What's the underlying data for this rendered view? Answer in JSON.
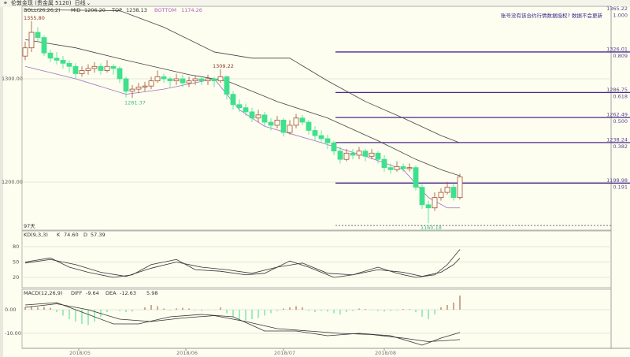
{
  "window": {
    "title": "伦敦金现 (贵金属 5120)",
    "period": "日线"
  },
  "notice": "账号没有该合约行情数据授权? 数据不会更新",
  "colors": {
    "up": "#a0522d",
    "down": "#3ee08c",
    "fib": "#4b2a8c",
    "boll_bottom": "#a070c0",
    "grid": "#e6e6d8",
    "axis": "#999999"
  },
  "chart_data": {
    "type": "candlestick",
    "boll": {
      "label": "BOLL(26,26,2)",
      "mid_label": "MID",
      "mid": "1206.20",
      "top_label": "TOP",
      "top": "1238.13",
      "bottom_label": "BOTTOM",
      "bottom": "1174.26"
    },
    "ylim": [
      1155,
      1370
    ],
    "yticks": [
      "1300.00",
      "1200.00"
    ],
    "ytick_values": [
      1300,
      1200
    ],
    "xticks": [
      {
        "label": "2018/05",
        "index": 8.5
      },
      {
        "label": "2018/06",
        "index": 25.5
      },
      {
        "label": "2018/07",
        "index": 41
      },
      {
        "label": "2018/08",
        "index": 57
      }
    ],
    "days_label": "97天",
    "candles": [
      [
        1322,
        1336,
        1318,
        1330
      ],
      [
        1330,
        1355.8,
        1326,
        1345
      ],
      [
        1345,
        1350,
        1336,
        1340
      ],
      [
        1340,
        1342,
        1322,
        1325
      ],
      [
        1325,
        1328,
        1316,
        1320
      ],
      [
        1320,
        1326,
        1314,
        1318
      ],
      [
        1318,
        1322,
        1310,
        1315
      ],
      [
        1315,
        1318,
        1306,
        1312
      ],
      [
        1312,
        1315,
        1300,
        1305
      ],
      [
        1305,
        1312,
        1302,
        1308
      ],
      [
        1308,
        1314,
        1304,
        1310
      ],
      [
        1310,
        1316,
        1306,
        1312
      ],
      [
        1312,
        1315,
        1304,
        1308
      ],
      [
        1308,
        1318,
        1306,
        1312
      ],
      [
        1312,
        1314,
        1304,
        1310
      ],
      [
        1310,
        1312,
        1296,
        1300
      ],
      [
        1300,
        1302,
        1282,
        1288
      ],
      [
        1288,
        1294,
        1281.37,
        1290
      ],
      [
        1290,
        1296,
        1286,
        1292
      ],
      [
        1292,
        1297,
        1288,
        1293
      ],
      [
        1293,
        1302,
        1290,
        1298
      ],
      [
        1298,
        1308,
        1296,
        1302
      ],
      [
        1302,
        1305,
        1296,
        1300
      ],
      [
        1300,
        1302,
        1292,
        1298
      ],
      [
        1298,
        1305,
        1294,
        1300
      ],
      [
        1300,
        1304,
        1292,
        1296
      ],
      [
        1296,
        1302,
        1292,
        1298
      ],
      [
        1298,
        1303,
        1294,
        1300
      ],
      [
        1300,
        1302,
        1294,
        1298
      ],
      [
        1298,
        1304,
        1294,
        1300
      ],
      [
        1300,
        1302,
        1292,
        1298
      ],
      [
        1298,
        1309.22,
        1296,
        1302
      ],
      [
        1302,
        1303,
        1280,
        1285
      ],
      [
        1285,
        1288,
        1270,
        1275
      ],
      [
        1275,
        1280,
        1268,
        1272
      ],
      [
        1272,
        1276,
        1264,
        1268
      ],
      [
        1268,
        1272,
        1258,
        1262
      ],
      [
        1262,
        1270,
        1258,
        1265
      ],
      [
        1265,
        1268,
        1254,
        1258
      ],
      [
        1258,
        1262,
        1250,
        1255
      ],
      [
        1255,
        1264,
        1252,
        1260
      ],
      [
        1260,
        1262,
        1244,
        1248
      ],
      [
        1248,
        1260,
        1246,
        1255
      ],
      [
        1255,
        1266,
        1252,
        1262
      ],
      [
        1262,
        1265,
        1255,
        1258
      ],
      [
        1258,
        1260,
        1246,
        1250
      ],
      [
        1250,
        1254,
        1240,
        1245
      ],
      [
        1245,
        1250,
        1238,
        1242
      ],
      [
        1242,
        1246,
        1232,
        1238
      ],
      [
        1238,
        1240,
        1226,
        1230
      ],
      [
        1230,
        1234,
        1218,
        1222
      ],
      [
        1222,
        1232,
        1220,
        1228
      ],
      [
        1228,
        1232,
        1222,
        1226
      ],
      [
        1226,
        1234,
        1222,
        1230
      ],
      [
        1230,
        1232,
        1220,
        1225
      ],
      [
        1225,
        1232,
        1222,
        1228
      ],
      [
        1228,
        1230,
        1218,
        1222
      ],
      [
        1222,
        1226,
        1210,
        1214
      ],
      [
        1214,
        1218,
        1208,
        1212
      ],
      [
        1212,
        1220,
        1210,
        1215
      ],
      [
        1215,
        1218,
        1210,
        1213
      ],
      [
        1213,
        1218,
        1210,
        1214
      ],
      [
        1214,
        1216,
        1192,
        1195
      ],
      [
        1195,
        1198,
        1174,
        1178
      ],
      [
        1178,
        1182,
        1160.18,
        1175
      ],
      [
        1175,
        1190,
        1172,
        1185
      ],
      [
        1185,
        1194,
        1182,
        1190
      ],
      [
        1190,
        1200,
        1188,
        1195
      ],
      [
        1195,
        1198,
        1182,
        1185
      ],
      [
        1185,
        1208,
        1183,
        1205
      ]
    ],
    "annotations": [
      {
        "text": "1355.80",
        "index": 1,
        "value": 1355.8,
        "pos": "above"
      },
      {
        "text": "1281.37",
        "index": 17,
        "value": 1281.37,
        "pos": "below"
      },
      {
        "text": "1309.22",
        "index": 31,
        "value": 1309.22,
        "pos": "above"
      },
      {
        "text": "1160.18",
        "index": 64,
        "value": 1160.18,
        "pos": "below"
      }
    ],
    "boll_series": {
      "top": [
        [
          0,
          1367
        ],
        [
          15,
          1366
        ],
        [
          22,
          1350
        ],
        [
          30,
          1326
        ],
        [
          36,
          1320
        ],
        [
          42,
          1320
        ],
        [
          48,
          1298
        ],
        [
          54,
          1278
        ],
        [
          60,
          1262
        ],
        [
          66,
          1245
        ],
        [
          69,
          1238
        ]
      ],
      "mid": [
        [
          0,
          1338
        ],
        [
          8,
          1330
        ],
        [
          16,
          1318
        ],
        [
          26,
          1304
        ],
        [
          32,
          1298
        ],
        [
          40,
          1278
        ],
        [
          48,
          1262
        ],
        [
          56,
          1240
        ],
        [
          62,
          1222
        ],
        [
          66,
          1212
        ],
        [
          69,
          1206
        ]
      ],
      "bottom": [
        [
          0,
          1312
        ],
        [
          8,
          1300
        ],
        [
          16,
          1285
        ],
        [
          22,
          1290
        ],
        [
          30,
          1300
        ],
        [
          34,
          1270
        ],
        [
          38,
          1254
        ],
        [
          46,
          1240
        ],
        [
          54,
          1225
        ],
        [
          60,
          1212
        ],
        [
          64,
          1185
        ],
        [
          67,
          1175
        ],
        [
          69,
          1175
        ]
      ]
    },
    "fibonacci": [
      {
        "price": "1365.22",
        "ratio": "1.000",
        "value": 1365.22
      },
      {
        "price": "1326.01",
        "ratio": "0.809",
        "value": 1326.01
      },
      {
        "price": "1286.75",
        "ratio": "0.618",
        "value": 1286.75
      },
      {
        "price": "1262.49",
        "ratio": "0.500",
        "value": 1262.49
      },
      {
        "price": "1238.24",
        "ratio": "0.382",
        "value": 1238.24
      },
      {
        "price": "1198.98",
        "ratio": "0.191",
        "value": 1198.98
      }
    ],
    "kd": {
      "label": "KD(9,3,3)",
      "k_label": "K",
      "k": "74.60",
      "d_label": "D",
      "d": "57.39",
      "yticks": [
        "80",
        "50",
        "20"
      ],
      "ytick_values": [
        80,
        50,
        20
      ],
      "K": [
        [
          0,
          50
        ],
        [
          4,
          58
        ],
        [
          7,
          40
        ],
        [
          10,
          30
        ],
        [
          14,
          20
        ],
        [
          17,
          25
        ],
        [
          20,
          45
        ],
        [
          24,
          55
        ],
        [
          27,
          35
        ],
        [
          31,
          32
        ],
        [
          35,
          25
        ],
        [
          38,
          28
        ],
        [
          42,
          52
        ],
        [
          45,
          40
        ],
        [
          49,
          20
        ],
        [
          52,
          25
        ],
        [
          56,
          40
        ],
        [
          59,
          28
        ],
        [
          62,
          20
        ],
        [
          65,
          25
        ],
        [
          67,
          45
        ],
        [
          69,
          74.6
        ]
      ],
      "D": [
        [
          0,
          48
        ],
        [
          4,
          55
        ],
        [
          8,
          45
        ],
        [
          12,
          30
        ],
        [
          16,
          22
        ],
        [
          20,
          38
        ],
        [
          24,
          50
        ],
        [
          28,
          40
        ],
        [
          32,
          35
        ],
        [
          36,
          28
        ],
        [
          40,
          40
        ],
        [
          44,
          48
        ],
        [
          48,
          28
        ],
        [
          52,
          25
        ],
        [
          56,
          35
        ],
        [
          60,
          30
        ],
        [
          63,
          22
        ],
        [
          66,
          30
        ],
        [
          68,
          45
        ],
        [
          69,
          57.39
        ]
      ]
    },
    "macd": {
      "label": "MACD(12,26,9)",
      "diff_label": "DIFF",
      "diff": "-9.64",
      "dea_label": "DEA",
      "dea": "-12.63",
      "macd": "5.98",
      "yticks": [
        "0.00",
        "-10.00"
      ],
      "ytick_values": [
        0,
        -10
      ],
      "DIFF": [
        [
          0,
          2
        ],
        [
          5,
          3
        ],
        [
          9,
          -1
        ],
        [
          14,
          -6
        ],
        [
          18,
          -6
        ],
        [
          23,
          -3
        ],
        [
          28,
          -2
        ],
        [
          33,
          -3
        ],
        [
          38,
          -9
        ],
        [
          43,
          -9
        ],
        [
          48,
          -11
        ],
        [
          53,
          -10
        ],
        [
          58,
          -11
        ],
        [
          63,
          -15
        ],
        [
          66,
          -12
        ],
        [
          69,
          -9.64
        ]
      ],
      "DEA": [
        [
          0,
          1
        ],
        [
          5,
          2.5
        ],
        [
          10,
          0
        ],
        [
          15,
          -4
        ],
        [
          20,
          -5
        ],
        [
          25,
          -3.5
        ],
        [
          30,
          -2.5
        ],
        [
          35,
          -5
        ],
        [
          40,
          -8
        ],
        [
          45,
          -9
        ],
        [
          50,
          -10
        ],
        [
          55,
          -10.5
        ],
        [
          60,
          -12
        ],
        [
          64,
          -13.5
        ],
        [
          67,
          -13
        ],
        [
          69,
          -12.63
        ]
      ],
      "hist": [
        1,
        1.5,
        1,
        1.2,
        0.8,
        -1,
        -2.5,
        -4,
        -5,
        -6,
        -6.5,
        -5,
        -3,
        -1,
        0,
        -0.5,
        -1,
        -0.8,
        0,
        1,
        2,
        1.5,
        0.5,
        -0.3,
        0.6,
        0.8,
        0.5,
        -0.3,
        -0.5,
        -0.2,
        -0.1,
        1,
        -1.5,
        -3,
        -4,
        -4.5,
        -4,
        -3.5,
        -2.5,
        -1.5,
        -0.5,
        0.5,
        1,
        1.5,
        1,
        -0.5,
        -1,
        -0.5,
        -0.8,
        -1.5,
        -2,
        -1,
        -0.5,
        0.5,
        0.3,
        -0.2,
        -0.5,
        -0.8,
        -0.5,
        -0.3,
        0.3,
        0.2,
        -1,
        -3,
        -4,
        -2,
        1,
        2,
        3,
        5.98
      ]
    }
  }
}
